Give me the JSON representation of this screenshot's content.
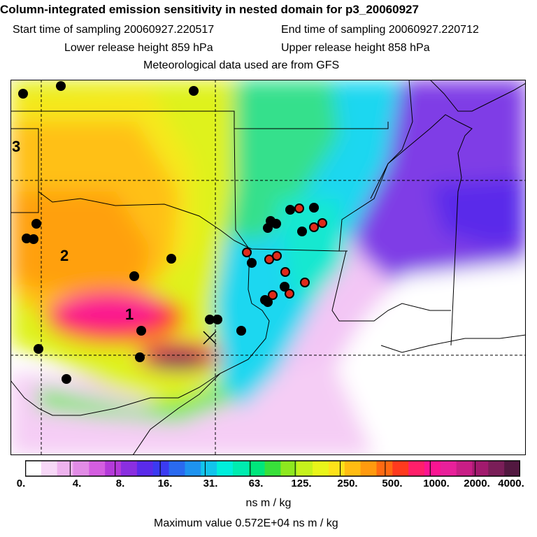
{
  "header": {
    "title": "Column-integrated emission sensitivity in nested domain for p3_20060927",
    "start_label": "Start time of sampling 20060927.220517",
    "end_label": "End time of sampling 20060927.220712",
    "lower_label": "Lower release height  859 hPa",
    "upper_label": "Upper release height  858 hPa",
    "met_label": "Meteorological data used are from GFS"
  },
  "map": {
    "region_labels": [
      "1",
      "2",
      "3"
    ],
    "colors": {
      "background": "#ffffff",
      "black_marker": "#000000",
      "red_marker": "#e02a1a",
      "outline": "#000000"
    }
  },
  "colorbar": {
    "tick_labels": [
      "0.",
      "4.",
      "8.",
      "16.",
      "31.",
      "63.",
      "125.",
      "250.",
      "500.",
      "1000.",
      "2000.",
      "4000."
    ],
    "colors": [
      "#ffffff",
      "#f7d8f7",
      "#eeb3ee",
      "#e28ce6",
      "#d45ee0",
      "#b43ad9",
      "#8a2fe0",
      "#5a2bea",
      "#3b3bf2",
      "#2a6af0",
      "#1e93f0",
      "#12c4ec",
      "#00eedc",
      "#00ecb0",
      "#00e67c",
      "#38e03a",
      "#8ee81f",
      "#c6f21c",
      "#e9f51a",
      "#fde21a",
      "#ffbc12",
      "#ff9a0f",
      "#ff6a12",
      "#ff3a1e",
      "#ff1f6a",
      "#fb1492",
      "#e8209a",
      "#c81e86",
      "#a21a6e",
      "#7a1e58",
      "#521840"
    ],
    "units": "ns m / kg",
    "max_value": "Maximum value  0.572E+04 ns m / kg"
  }
}
